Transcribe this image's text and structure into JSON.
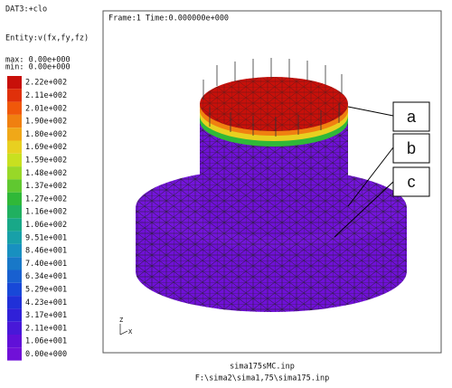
{
  "panel": {
    "dataset": "DAT3:+clo",
    "entity": "Entity:v(fx,fy,fz)",
    "max": "max: 0.00e+000",
    "min": "min: 0.00e+000",
    "legend": [
      {
        "label": "2.22e+002",
        "color": "#c8100a"
      },
      {
        "label": "2.11e+002",
        "color": "#e0300a"
      },
      {
        "label": "2.01e+002",
        "color": "#f0580a"
      },
      {
        "label": "1.90e+002",
        "color": "#f08010"
      },
      {
        "label": "1.80e+002",
        "color": "#f0a818"
      },
      {
        "label": "1.69e+002",
        "color": "#e8d020"
      },
      {
        "label": "1.59e+002",
        "color": "#c8e020"
      },
      {
        "label": "1.48e+002",
        "color": "#98d828"
      },
      {
        "label": "1.37e+002",
        "color": "#60c830"
      },
      {
        "label": "1.27e+002",
        "color": "#30b838"
      },
      {
        "label": "1.16e+002",
        "color": "#20b060"
      },
      {
        "label": "1.06e+002",
        "color": "#18a888"
      },
      {
        "label": "9.51e+001",
        "color": "#18a0a8"
      },
      {
        "label": "8.46e+001",
        "color": "#1890c0"
      },
      {
        "label": "7.40e+001",
        "color": "#1878c8"
      },
      {
        "label": "6.34e+001",
        "color": "#1860d0"
      },
      {
        "label": "5.29e+001",
        "color": "#1848d8"
      },
      {
        "label": "4.23e+001",
        "color": "#2030d8"
      },
      {
        "label": "3.17e+001",
        "color": "#3020d8"
      },
      {
        "label": "2.11e+001",
        "color": "#4818d8"
      },
      {
        "label": "1.06e+001",
        "color": "#6010d8"
      },
      {
        "label": "0.00e+000",
        "color": "#7010d8"
      }
    ]
  },
  "viewport": {
    "frame": "Frame:1 Time:0.000000e+000",
    "axis_z": "Z",
    "axis_x": "X"
  },
  "callouts": [
    "a",
    "b",
    "c"
  ],
  "footer": {
    "model": "sima175sMC.inp",
    "path": "F:\\sima2\\sima1,75\\sima175.inp"
  }
}
